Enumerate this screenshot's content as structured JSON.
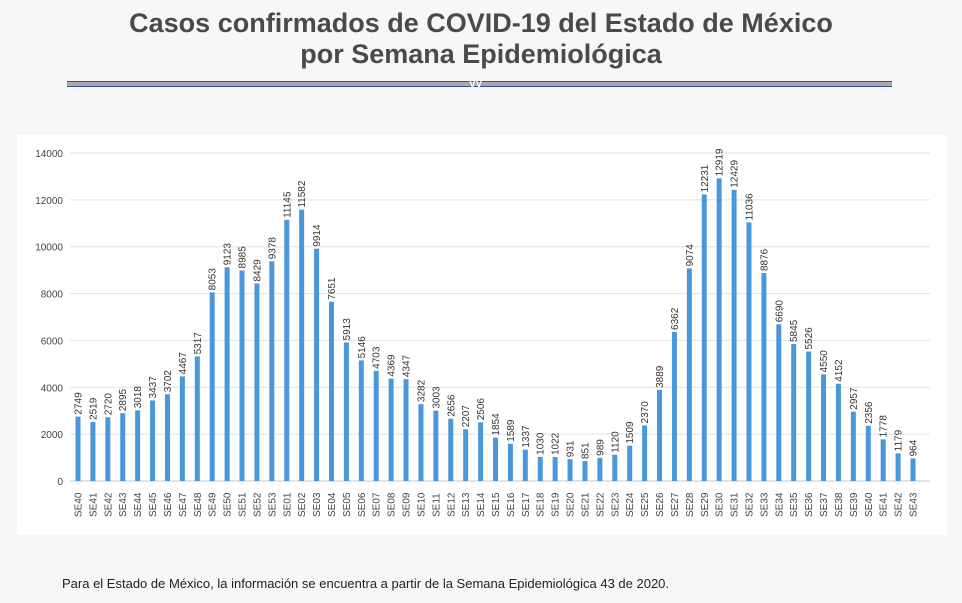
{
  "header": {
    "title_line1": "Casos confirmados de COVID-19 del Estado de México",
    "title_line2": "por Semana Epidemiológica"
  },
  "footer": {
    "note": "Para el Estado de México, la información se encuentra a partir de la Semana Epidemiológica 43 de 2020."
  },
  "chart_data": {
    "type": "bar",
    "title": "",
    "xlabel": "",
    "ylabel": "",
    "ylim": [
      0,
      14000
    ],
    "yticks": [
      0,
      2000,
      4000,
      6000,
      8000,
      10000,
      12000,
      14000
    ],
    "grid": true,
    "bar_color": "#4a97db",
    "categories": [
      "SE40",
      "SE41",
      "SE42",
      "SE43",
      "SE44",
      "SE45",
      "SE46",
      "SE47",
      "SE48",
      "SE49",
      "SE50",
      "SE51",
      "SE52",
      "SE53",
      "SE01",
      "SE02",
      "SE03",
      "SE04",
      "SE05",
      "SE06",
      "SE07",
      "SE08",
      "SE09",
      "SE10",
      "SE11",
      "SE12",
      "SE13",
      "SE14",
      "SE15",
      "SE16",
      "SE17",
      "SE18",
      "SE19",
      "SE20",
      "SE21",
      "SE22",
      "SE23",
      "SE24",
      "SE25",
      "SE26",
      "SE27",
      "SE28",
      "SE29",
      "SE30",
      "SE31",
      "SE32",
      "SE33",
      "SE34",
      "SE35",
      "SE36",
      "SE37",
      "SE38",
      "SE39",
      "SE40",
      "SE41",
      "SE42",
      "SE43"
    ],
    "values": [
      2749,
      2519,
      2720,
      2895,
      3018,
      3437,
      3702,
      4467,
      5317,
      8053,
      9123,
      8985,
      8429,
      9378,
      11145,
      11582,
      9914,
      7651,
      5913,
      5146,
      4703,
      4369,
      4347,
      3282,
      3003,
      2656,
      2207,
      2506,
      1854,
      1589,
      1337,
      1030,
      1022,
      931,
      851,
      989,
      1120,
      1509,
      2370,
      3889,
      6362,
      9074,
      12231,
      12919,
      12429,
      11036,
      8876,
      6690,
      5845,
      5526,
      4550,
      4152,
      2957,
      2356,
      1778,
      1179,
      964
    ]
  }
}
